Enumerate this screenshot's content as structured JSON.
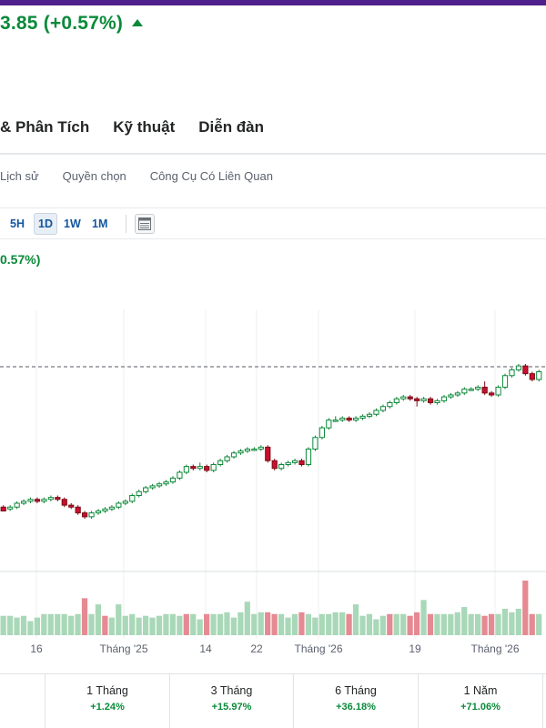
{
  "header": {
    "price_change": "3.85 (+0.57%)",
    "colors": {
      "accent_bar": "#4f1f8b",
      "positive": "#0a8a3a",
      "negative": "#c8102e"
    }
  },
  "main_tabs": [
    "& Phân Tích",
    "Kỹ thuật",
    "Diễn đàn"
  ],
  "sub_tabs": [
    "Lịch sử",
    "Quyền chọn",
    "Công Cụ Có Liên Quan"
  ],
  "toolbar": {
    "periods": [
      "5H",
      "1D",
      "1W",
      "1M"
    ],
    "active_period": "1D",
    "table_icon": "table-icon"
  },
  "chart_header": {
    "change_text": "0.57%)"
  },
  "chart_data": {
    "type": "candlestick",
    "x_tick_labels": [
      "16",
      "Tháng '25",
      "14",
      "22",
      "Tháng '26",
      "19",
      "Tháng '26"
    ],
    "reference_line": "dashed",
    "candles": [
      [
        100,
        98,
        101,
        99
      ],
      [
        99,
        100,
        101,
        98
      ],
      [
        100,
        102,
        103,
        99
      ],
      [
        102,
        103,
        104,
        101
      ],
      [
        103,
        104,
        105,
        102
      ],
      [
        104,
        103,
        105,
        102
      ],
      [
        103,
        104,
        105,
        102
      ],
      [
        104,
        105,
        106,
        103
      ],
      [
        105,
        104,
        106,
        103
      ],
      [
        104,
        101,
        105,
        100
      ],
      [
        101,
        100,
        102,
        99
      ],
      [
        100,
        97,
        101,
        96
      ],
      [
        97,
        95,
        98,
        94
      ],
      [
        95,
        97,
        98,
        94
      ],
      [
        97,
        98,
        99,
        96
      ],
      [
        98,
        99,
        100,
        97
      ],
      [
        99,
        100,
        101,
        98
      ],
      [
        100,
        102,
        103,
        99
      ],
      [
        102,
        103,
        104,
        101
      ],
      [
        103,
        106,
        107,
        102
      ],
      [
        106,
        108,
        109,
        105
      ],
      [
        108,
        110,
        111,
        107
      ],
      [
        110,
        111,
        112,
        109
      ],
      [
        111,
        112,
        113,
        110
      ],
      [
        112,
        113,
        114,
        111
      ],
      [
        113,
        115,
        116,
        112
      ],
      [
        115,
        118,
        119,
        114
      ],
      [
        118,
        121,
        122,
        117
      ],
      [
        121,
        120,
        122,
        119
      ],
      [
        120,
        121,
        123,
        119
      ],
      [
        121,
        119,
        122,
        118
      ],
      [
        119,
        122,
        123,
        118
      ],
      [
        122,
        124,
        125,
        121
      ],
      [
        124,
        126,
        127,
        123
      ],
      [
        126,
        128,
        129,
        125
      ],
      [
        128,
        129,
        130,
        127
      ],
      [
        129,
        130,
        131,
        128
      ],
      [
        130,
        130,
        131,
        129
      ],
      [
        130,
        131,
        132,
        129
      ],
      [
        131,
        124,
        132,
        123
      ],
      [
        124,
        120,
        125,
        119
      ],
      [
        120,
        122,
        123,
        119
      ],
      [
        122,
        123,
        124,
        121
      ],
      [
        123,
        124,
        125,
        122
      ],
      [
        124,
        122,
        125,
        121
      ],
      [
        122,
        130,
        131,
        121
      ],
      [
        130,
        136,
        137,
        129
      ],
      [
        136,
        141,
        142,
        135
      ],
      [
        141,
        145,
        146,
        140
      ],
      [
        145,
        145,
        147,
        144
      ],
      [
        145,
        146,
        147,
        144
      ],
      [
        146,
        145,
        147,
        144
      ],
      [
        145,
        146,
        147,
        144
      ],
      [
        146,
        147,
        148,
        145
      ],
      [
        147,
        148,
        149,
        146
      ],
      [
        148,
        150,
        151,
        147
      ],
      [
        150,
        152,
        153,
        149
      ],
      [
        152,
        154,
        155,
        151
      ],
      [
        154,
        156,
        157,
        153
      ],
      [
        156,
        157,
        158,
        155
      ],
      [
        157,
        156,
        158,
        155
      ],
      [
        156,
        155,
        157,
        152
      ],
      [
        155,
        156,
        157,
        154
      ],
      [
        156,
        154,
        157,
        153
      ],
      [
        154,
        155,
        156,
        153
      ],
      [
        155,
        157,
        158,
        154
      ],
      [
        157,
        158,
        159,
        156
      ],
      [
        158,
        159,
        160,
        157
      ],
      [
        159,
        161,
        162,
        158
      ],
      [
        161,
        161,
        162,
        160
      ],
      [
        161,
        162,
        163,
        160
      ],
      [
        162,
        159,
        165,
        158
      ],
      [
        159,
        158,
        160,
        157
      ],
      [
        158,
        162,
        163,
        157
      ],
      [
        162,
        168,
        169,
        161
      ],
      [
        168,
        171,
        172,
        167
      ],
      [
        171,
        173,
        174,
        170
      ],
      [
        173,
        169,
        174,
        168
      ],
      [
        169,
        166,
        170,
        165
      ],
      [
        166,
        170,
        171,
        165
      ]
    ],
    "volumes": [
      22,
      22,
      20,
      22,
      16,
      20,
      24,
      24,
      24,
      24,
      22,
      24,
      42,
      24,
      35,
      22,
      20,
      35,
      22,
      24,
      20,
      22,
      20,
      22,
      24,
      24,
      22,
      24,
      24,
      18,
      24,
      24,
      24,
      26,
      20,
      26,
      38,
      24,
      26,
      26,
      24,
      24,
      20,
      24,
      26,
      24,
      20,
      24,
      24,
      26,
      26,
      24,
      35,
      22,
      24,
      18,
      22,
      24,
      24,
      24,
      22,
      26,
      40,
      24,
      24,
      24,
      24,
      26,
      32,
      24,
      24,
      22,
      24,
      24,
      30,
      26,
      30,
      62,
      24,
      24
    ],
    "volume_up": [
      true,
      true,
      true,
      true,
      true,
      true,
      true,
      true,
      true,
      true,
      true,
      true,
      false,
      true,
      true,
      false,
      true,
      true,
      true,
      true,
      true,
      true,
      true,
      true,
      true,
      true,
      true,
      false,
      true,
      true,
      false,
      true,
      true,
      true,
      true,
      true,
      true,
      true,
      true,
      false,
      false,
      true,
      true,
      true,
      false,
      true,
      true,
      true,
      true,
      true,
      true,
      false,
      true,
      true,
      true,
      true,
      true,
      false,
      true,
      true,
      false,
      false,
      true,
      false,
      true,
      true,
      true,
      true,
      true,
      true,
      true,
      false,
      false,
      true,
      true,
      true,
      true,
      false,
      false,
      true
    ]
  },
  "performance": [
    {
      "label": "",
      "value": ""
    },
    {
      "label": "1 Tháng",
      "value": "+1.24%"
    },
    {
      "label": "3 Tháng",
      "value": "+15.97%"
    },
    {
      "label": "6 Tháng",
      "value": "+36.18%"
    },
    {
      "label": "1 Năm",
      "value": "+71.06%"
    }
  ]
}
